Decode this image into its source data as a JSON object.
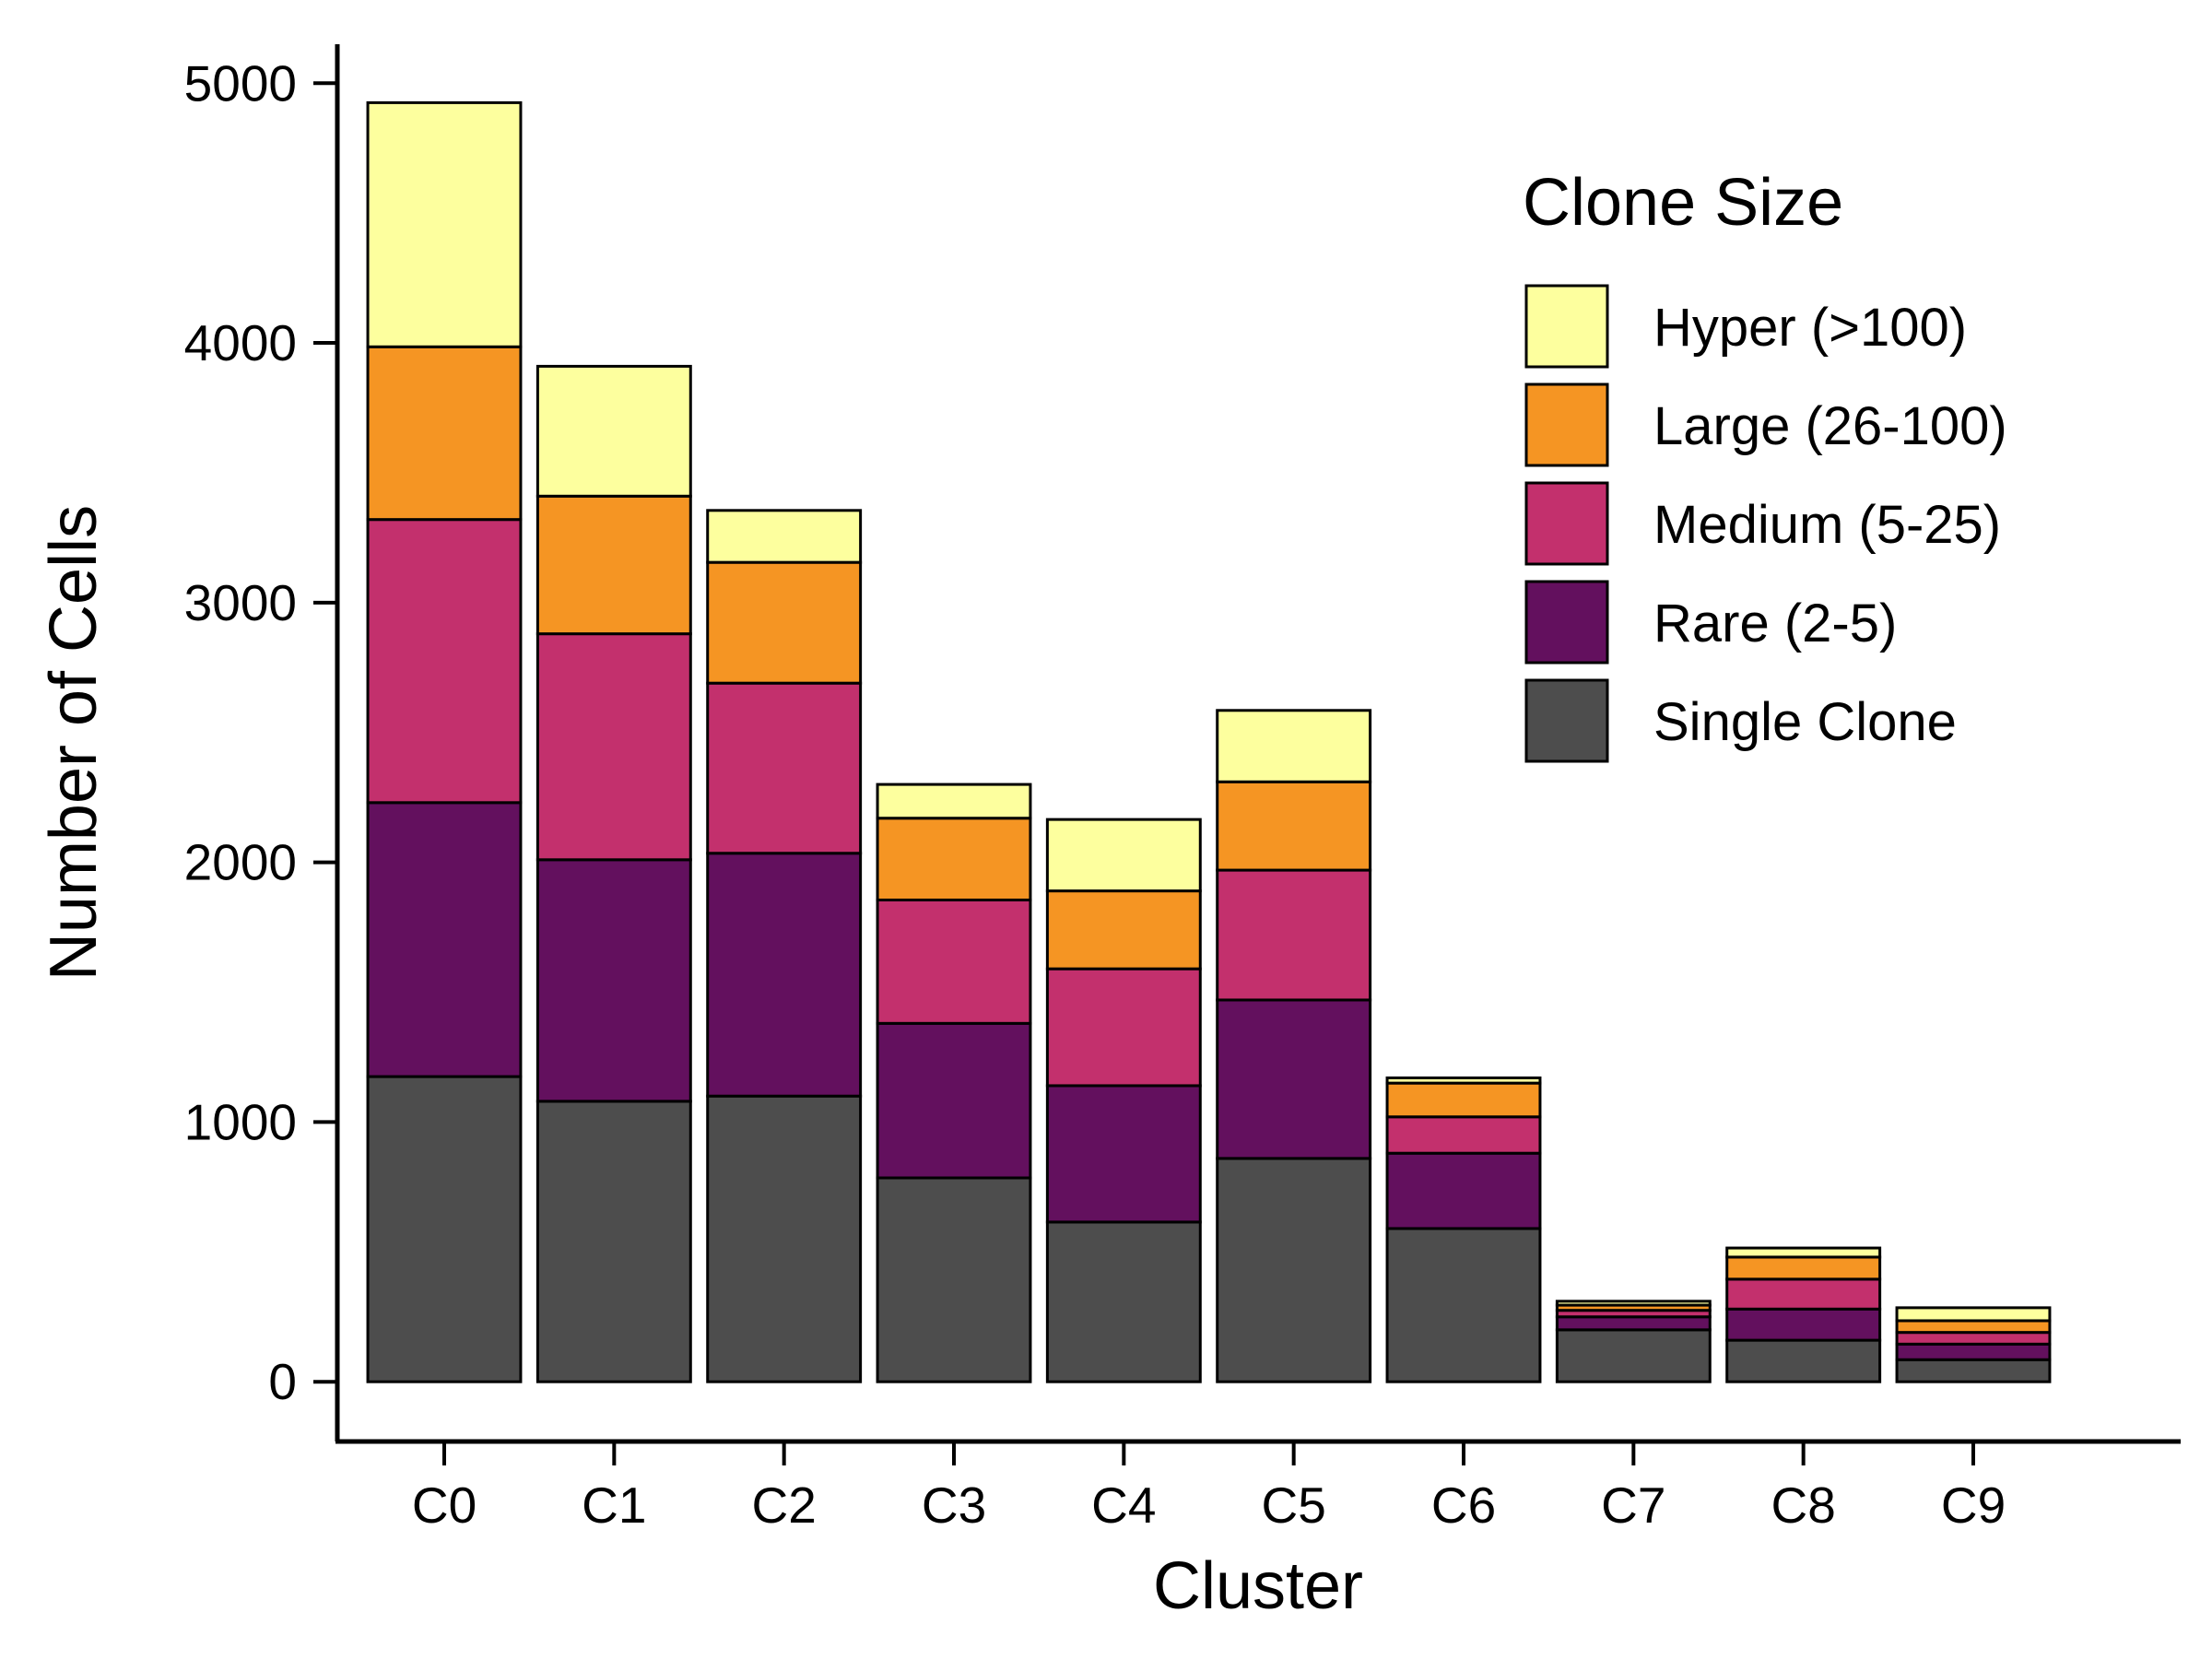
{
  "chart_data": {
    "type": "bar",
    "stacked": true,
    "xlabel": "Cluster",
    "ylabel": "Number of Cells",
    "categories": [
      "C0",
      "C1",
      "C2",
      "C3",
      "C4",
      "C5",
      "C6",
      "C7",
      "C8",
      "C9"
    ],
    "ylim": [
      -230,
      5150
    ],
    "yticks": [
      "0",
      "1000",
      "2000",
      "3000",
      "4000",
      "5000"
    ],
    "legend": {
      "title": "Clone Size",
      "position": "top-right"
    },
    "series": [
      {
        "name": "Single Clone",
        "color": "#4d4d4d",
        "values": [
          1175,
          1080,
          1100,
          785,
          615,
          860,
          590,
          200,
          160,
          85
        ]
      },
      {
        "name": "Rare (2-5)",
        "color": "#63105e",
        "values": [
          1055,
          930,
          935,
          595,
          525,
          610,
          290,
          50,
          120,
          60
        ]
      },
      {
        "name": "Medium (5-25)",
        "color": "#c3306d",
        "values": [
          1090,
          870,
          655,
          475,
          450,
          500,
          140,
          25,
          115,
          45
        ]
      },
      {
        "name": "Large (26-100)",
        "color": "#f59523",
        "values": [
          665,
          530,
          465,
          315,
          300,
          340,
          130,
          20,
          85,
          45
        ]
      },
      {
        "name": "Hyper (>100)",
        "color": "#fdff9e",
        "values": [
          940,
          500,
          200,
          130,
          275,
          275,
          20,
          15,
          35,
          50
        ]
      }
    ]
  }
}
